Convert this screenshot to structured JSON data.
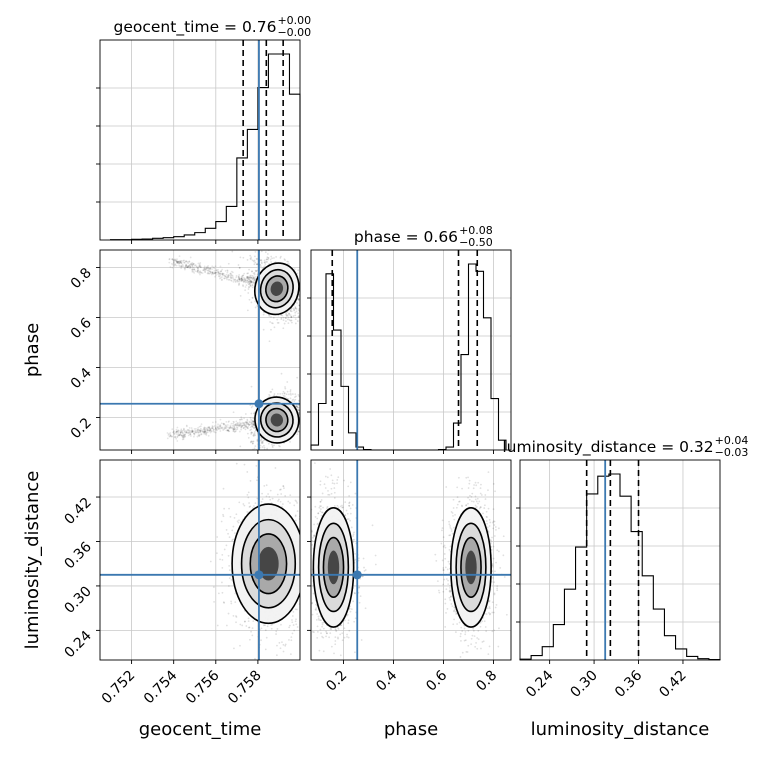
{
  "chart_data": {
    "type": "corner",
    "grid": true,
    "truth_color": "#3b78b0",
    "parameters": [
      {
        "name": "geocent_time",
        "xlabel": "geocent_time",
        "ylabel": "",
        "range": [
          0.7505,
          0.76
        ],
        "ticks": [
          0.752,
          0.754,
          0.756,
          0.758
        ],
        "tick_labels": [
          "0.752",
          "0.754",
          "0.756",
          "0.758"
        ],
        "truth": 0.75805,
        "quantiles": [
          0.7573,
          0.7584,
          0.7592
        ],
        "title_main": "geocent_time = 0.76",
        "title_sup": "+0.00",
        "title_sub": "−0.00"
      },
      {
        "name": "phase",
        "xlabel": "phase",
        "ylabel": "phase",
        "range": [
          0.07,
          0.87
        ],
        "ticks": [
          0.2,
          0.4,
          0.6,
          0.8
        ],
        "tick_labels": [
          "0.2",
          "0.4",
          "0.6",
          "0.8"
        ],
        "truth": 0.255,
        "quantiles": [
          0.155,
          0.66,
          0.735
        ],
        "title_main": "phase = 0.66",
        "title_sup": "+0.08",
        "title_sub": "−0.50"
      },
      {
        "name": "luminosity_distance",
        "xlabel": "luminosity_distance",
        "ylabel": "luminosity_distance",
        "range": [
          0.2,
          0.47
        ],
        "ticks": [
          0.24,
          0.3,
          0.36,
          0.42
        ],
        "tick_labels": [
          "0.24",
          "0.30",
          "0.36",
          "0.42"
        ],
        "truth": 0.315,
        "quantiles": [
          0.29,
          0.322,
          0.36
        ],
        "title_main": "luminosity_distance = 0.32",
        "title_sup": "+0.04",
        "title_sub": "−0.03"
      }
    ],
    "histograms": [
      {
        "parameter": "geocent_time",
        "bin_edges": [
          0.751,
          0.7515,
          0.752,
          0.7525,
          0.753,
          0.7535,
          0.754,
          0.7545,
          0.755,
          0.7555,
          0.756,
          0.7565,
          0.757,
          0.7575,
          0.758,
          0.7585,
          0.759,
          0.7595,
          0.76
        ],
        "counts": [
          1,
          1,
          2,
          3,
          5,
          7,
          10,
          15,
          22,
          35,
          55,
          100,
          245,
          330,
          455,
          555,
          555,
          435
        ]
      },
      {
        "parameter": "phase",
        "bin_edges": [
          0.07,
          0.1,
          0.13,
          0.16,
          0.19,
          0.22,
          0.25,
          0.28,
          0.31,
          0.34,
          0.37,
          0.4,
          0.43,
          0.46,
          0.49,
          0.52,
          0.55,
          0.58,
          0.61,
          0.64,
          0.67,
          0.7,
          0.73,
          0.76,
          0.79,
          0.82,
          0.85
        ],
        "counts": [
          10,
          95,
          360,
          245,
          130,
          35,
          6,
          1,
          0,
          0,
          0,
          0,
          0,
          0,
          0,
          0,
          0,
          1,
          6,
          55,
          195,
          380,
          365,
          270,
          105,
          20
        ]
      },
      {
        "parameter": "luminosity_distance",
        "bin_edges": [
          0.2,
          0.215,
          0.23,
          0.245,
          0.26,
          0.275,
          0.29,
          0.305,
          0.32,
          0.335,
          0.35,
          0.365,
          0.38,
          0.395,
          0.41,
          0.425,
          0.44,
          0.455,
          0.47
        ],
        "counts": [
          2,
          10,
          30,
          80,
          160,
          255,
          375,
          415,
          420,
          370,
          290,
          190,
          115,
          55,
          25,
          8,
          3,
          1
        ]
      }
    ],
    "blobs_2d": [
      {
        "x": "geocent_time",
        "y": "phase",
        "cx": 0.7589,
        "cy": 0.715,
        "sx": 0.00045,
        "sy": 0.045,
        "rho": -0.4
      },
      {
        "x": "geocent_time",
        "y": "phase",
        "cx": 0.7589,
        "cy": 0.19,
        "sx": 0.00045,
        "sy": 0.04,
        "rho": 0.4
      },
      {
        "x": "geocent_time",
        "y": "luminosity_distance",
        "cx": 0.7585,
        "cy": 0.33,
        "sx": 0.00075,
        "sy": 0.035,
        "rho": 0.0
      },
      {
        "x": "phase",
        "y": "luminosity_distance",
        "cx": 0.16,
        "cy": 0.325,
        "sx": 0.035,
        "sy": 0.035,
        "rho": 0.0
      },
      {
        "x": "phase",
        "y": "luminosity_distance",
        "cx": 0.71,
        "cy": 0.325,
        "sx": 0.035,
        "sy": 0.035,
        "rho": 0.0
      }
    ]
  }
}
